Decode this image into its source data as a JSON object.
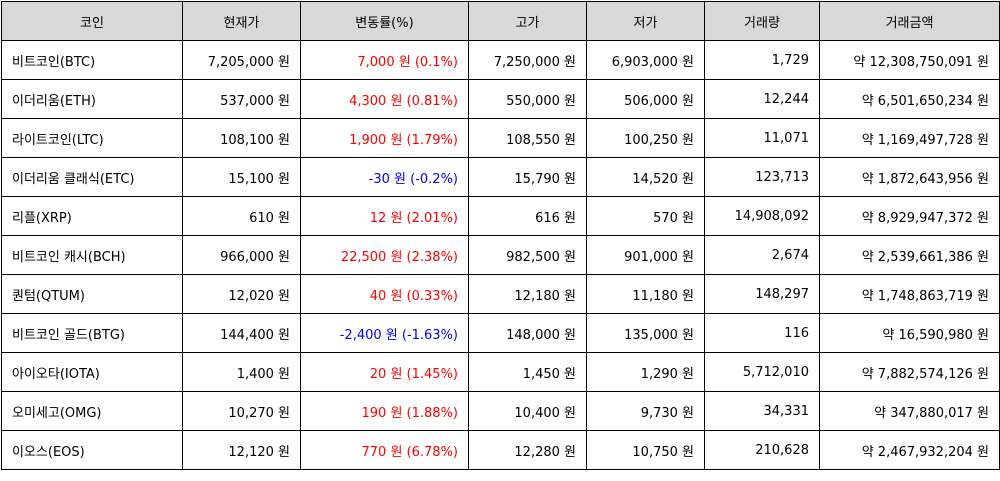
{
  "columns": [
    "코인",
    "현재가",
    "변동률(%)",
    "고가",
    "저가",
    "거래량",
    "거래금액"
  ],
  "rows": [
    {
      "name": "비트코인(BTC)",
      "price": "7,205,000 원",
      "change": "7,000 원 (0.1%)",
      "dir": "up",
      "high": "7,250,000 원",
      "low": "6,903,000 원",
      "volume": "1,729",
      "amount": "약 12,308,750,091 원"
    },
    {
      "name": "이더리움(ETH)",
      "price": "537,000 원",
      "change": "4,300 원 (0.81%)",
      "dir": "up",
      "high": "550,000 원",
      "low": "506,000 원",
      "volume": "12,244",
      "amount": "약 6,501,650,234 원"
    },
    {
      "name": "라이트코인(LTC)",
      "price": "108,100 원",
      "change": "1,900 원 (1.79%)",
      "dir": "up",
      "high": "108,550 원",
      "low": "100,250 원",
      "volume": "11,071",
      "amount": "약 1,169,497,728 원"
    },
    {
      "name": "이더리움 클래식(ETC)",
      "price": "15,100 원",
      "change": "-30 원 (-0.2%)",
      "dir": "down",
      "high": "15,790 원",
      "low": "14,520 원",
      "volume": "123,713",
      "amount": "약 1,872,643,956 원"
    },
    {
      "name": "리플(XRP)",
      "price": "610 원",
      "change": "12 원 (2.01%)",
      "dir": "up",
      "high": "616 원",
      "low": "570 원",
      "volume": "14,908,092",
      "amount": "약 8,929,947,372 원"
    },
    {
      "name": "비트코인 캐시(BCH)",
      "price": "966,000 원",
      "change": "22,500 원 (2.38%)",
      "dir": "up",
      "high": "982,500 원",
      "low": "901,000 원",
      "volume": "2,674",
      "amount": "약 2,539,661,386 원"
    },
    {
      "name": "퀀텀(QTUM)",
      "price": "12,020 원",
      "change": "40 원 (0.33%)",
      "dir": "up",
      "high": "12,180 원",
      "low": "11,180 원",
      "volume": "148,297",
      "amount": "약 1,748,863,719 원"
    },
    {
      "name": "비트코인 골드(BTG)",
      "price": "144,400 원",
      "change": "-2,400 원 (-1.63%)",
      "dir": "down",
      "high": "148,000 원",
      "low": "135,000 원",
      "volume": "116",
      "amount": "약 16,590,980 원"
    },
    {
      "name": "아이오타(IOTA)",
      "price": "1,400 원",
      "change": "20 원 (1.45%)",
      "dir": "up",
      "high": "1,450 원",
      "low": "1,290 원",
      "volume": "5,712,010",
      "amount": "약 7,882,574,126 원"
    },
    {
      "name": "오미세고(OMG)",
      "price": "10,270 원",
      "change": "190 원 (1.88%)",
      "dir": "up",
      "high": "10,400 원",
      "low": "9,730 원",
      "volume": "34,331",
      "amount": "약 347,880,017 원"
    },
    {
      "name": "이오스(EOS)",
      "price": "12,120 원",
      "change": "770 원 (6.78%)",
      "dir": "up",
      "high": "12,280 원",
      "low": "10,750 원",
      "volume": "210,628",
      "amount": "약 2,467,932,204 원"
    }
  ],
  "colors": {
    "up": "#ff0000",
    "down": "#0000ff",
    "header_bg": "#d9d9d9"
  }
}
